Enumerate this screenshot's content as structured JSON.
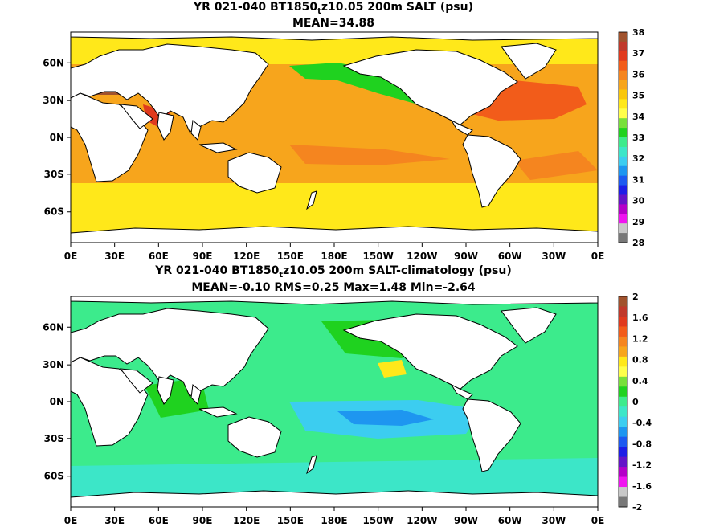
{
  "panels": [
    {
      "title_pre": "YR 021-040 BT1850",
      "title_sub": "t",
      "title_post": "z10.05 200m SALT (psu)",
      "stats": "MEAN=34.88",
      "lon_ticks": [
        "0E",
        "30E",
        "60E",
        "90E",
        "120E",
        "150E",
        "180E",
        "150W",
        "120W",
        "90W",
        "60W",
        "30W",
        "0E"
      ],
      "lat_ticks": [
        "60N",
        "30N",
        "0N",
        "30S",
        "60S"
      ],
      "colorbar": {
        "labels": [
          "38",
          "37",
          "36",
          "35",
          "34",
          "33",
          "32",
          "31",
          "30",
          "29",
          "28"
        ],
        "colors": [
          "#a0522d",
          "#c0392b",
          "#e03a1e",
          "#f25c1a",
          "#f5851f",
          "#f7a51c",
          "#f9c70c",
          "#ffe81a",
          "#ffff4a",
          "#78e03a",
          "#1fd21f",
          "#3ceb8c",
          "#3ce6c8",
          "#3ccdf0",
          "#1e96f0",
          "#1e5af0",
          "#1e1ee6",
          "#6414c8",
          "#b400c8",
          "#f014f0",
          "#c8c8c8",
          "#787878"
        ]
      },
      "field": {
        "base": "#f7a51c",
        "polar": "#ffe81a",
        "atlantic": "#f25c1a",
        "med": "#a0522d",
        "red_sea": "#e03a1e",
        "arctic": "#ffff4a",
        "npac": "#1fd21f",
        "tongue": "#f5851f"
      }
    },
    {
      "title_pre": "YR 021-040 BT1850",
      "title_sub": "t",
      "title_post": "z10.05 200m SALT-climatology (psu)",
      "stats": "MEAN=-0.10   RMS=0.25   Max=1.48   Min=-2.64",
      "lon_ticks": [
        "0E",
        "30E",
        "60E",
        "90E",
        "120E",
        "150E",
        "180E",
        "150W",
        "120W",
        "90W",
        "60W",
        "30W",
        "0E"
      ],
      "lat_ticks": [
        "60N",
        "30N",
        "0N",
        "30S",
        "60S"
      ],
      "colorbar": {
        "labels": [
          "2",
          "1.6",
          "1.2",
          "0.8",
          "0.4",
          "0",
          "-0.4",
          "-0.8",
          "-1.2",
          "-1.6",
          "-2"
        ],
        "colors": [
          "#a0522d",
          "#c0392b",
          "#e03a1e",
          "#f25c1a",
          "#f5851f",
          "#f7a51c",
          "#ffe81a",
          "#ffff4a",
          "#78e03a",
          "#1fd21f",
          "#3ceb8c",
          "#3ce6c8",
          "#3ccdf0",
          "#1e96f0",
          "#1e5af0",
          "#1e1ee6",
          "#6414c8",
          "#b400c8",
          "#f014f0",
          "#c8c8c8",
          "#787878"
        ]
      },
      "field": {
        "base": "#3ceb8c",
        "polar": "#3ce6c8",
        "eqpac": "#3ccdf0",
        "blue": "#1e96f0",
        "green": "#1fd21f",
        "yellow": "#ffe81a"
      }
    }
  ]
}
